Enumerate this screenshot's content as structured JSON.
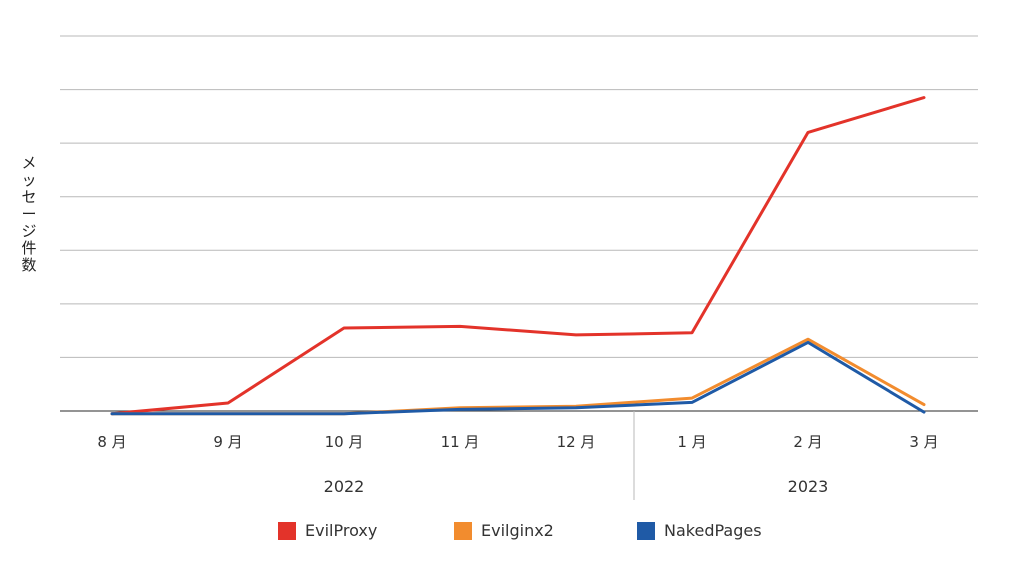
{
  "chart_data": {
    "type": "line",
    "title": "",
    "xlabel": "",
    "ylabel": "メッセージ件数",
    "categories": [
      "8 月",
      "9 月",
      "10 月",
      "11 月",
      "12 月",
      "1 月",
      "2 月",
      "3 月"
    ],
    "year_groups": [
      {
        "label": "2022",
        "start": 0,
        "end": 4
      },
      {
        "label": "2023",
        "start": 5,
        "end": 7
      }
    ],
    "ylim": [
      0,
      7
    ],
    "gridlines": 7,
    "y_tick_labels_shown": false,
    "grid": true,
    "legend_position": "bottom",
    "series": [
      {
        "name": "EvilProxy",
        "color": "#e3332a",
        "values": [
          -0.05,
          0.15,
          1.55,
          1.58,
          1.42,
          1.46,
          5.2,
          5.85
        ]
      },
      {
        "name": "Evilginx2",
        "color": "#f28c2e",
        "values": [
          -0.05,
          -0.05,
          -0.05,
          0.06,
          0.09,
          0.24,
          1.34,
          0.12
        ]
      },
      {
        "name": "NakedPages",
        "color": "#1f5aa6",
        "values": [
          -0.05,
          -0.05,
          -0.05,
          0.03,
          0.06,
          0.16,
          1.28,
          -0.02
        ]
      }
    ]
  }
}
